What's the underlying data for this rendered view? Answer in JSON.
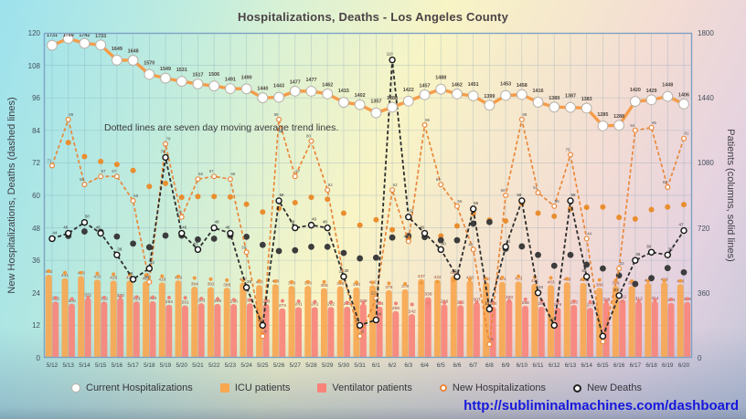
{
  "title": "Hospitalizations, Deaths - Los Angeles County",
  "annotation": "Dotted lines are seven day moving average trend lines.",
  "footer": {
    "url": "http://subliminalmachines.com/dashboard"
  },
  "axes": {
    "left": {
      "label": "New Hospitalizations, Deaths (dashed lines)",
      "ticks": [
        0,
        12,
        24,
        36,
        48,
        60,
        72,
        84,
        96,
        108,
        120
      ],
      "max": 120
    },
    "right": {
      "label": "Patients (columns, solid lines)",
      "ticks": [
        0,
        360,
        720,
        1080,
        1440,
        1800
      ],
      "max": 1800
    }
  },
  "legend": {
    "items": [
      {
        "label": "Current Hospitalizations",
        "marker": "circle-white",
        "color": "#b9b2a8"
      },
      {
        "label": "ICU patients",
        "marker": "square",
        "color": "#F7A750"
      },
      {
        "label": "Ventilator patients",
        "marker": "square",
        "color": "#F8837A"
      },
      {
        "label": "New Hospitalizations",
        "marker": "circle-small",
        "color": "#E8883B"
      },
      {
        "label": "New Deaths",
        "marker": "circle-ring",
        "color": "#222222"
      }
    ]
  },
  "chart_data": {
    "type": "mixed-bar-line",
    "title": "Hospitalizations, Deaths - Los Angeles County",
    "grid": true,
    "x": [
      "5/12",
      "5/13",
      "5/14",
      "5/15",
      "5/16",
      "5/17",
      "5/18",
      "5/19",
      "5/20",
      "5/21",
      "5/22",
      "5/23",
      "5/24",
      "5/25",
      "5/26",
      "5/27",
      "5/28",
      "5/29",
      "5/30",
      "5/31",
      "6/1",
      "6/2",
      "6/3",
      "6/4",
      "6/5",
      "6/6",
      "6/7",
      "6/8",
      "6/9",
      "6/10",
      "6/11",
      "6/12",
      "6/13",
      "6/14",
      "6/15",
      "6/16",
      "6/17",
      "6/18",
      "6/19",
      "6/20"
    ],
    "y_left_range": [
      0,
      120
    ],
    "y_right_range": [
      0,
      1800
    ],
    "trend_note": "Dotted 7-day moving-average trend lines are drawn for ICU patients, Ventilator patients, New Hospitalizations and New Deaths",
    "series": [
      {
        "name": "Current Hospitalizations",
        "type": "line",
        "axis": "right",
        "color": "#F59C4A",
        "marker": "white-circle",
        "values": [
          1731,
          1769,
          1742,
          1733,
          1649,
          1648,
          1570,
          1549,
          1531,
          1517,
          1506,
          1491,
          1490,
          1440,
          1443,
          1477,
          1477,
          1462,
          1415,
          1402,
          1357,
          1388,
          1422,
          1457,
          1488,
          1462,
          1451,
          1399,
          1453,
          1458,
          1416,
          1389,
          1387,
          1383,
          1285,
          1288,
          1420,
          1429,
          1448,
          1406
        ]
      },
      {
        "name": "ICU patients",
        "type": "bar",
        "axis": "right",
        "color": "#F7A750",
        "label_color": "#9c4a30",
        "trend_color": "#F09A3E",
        "values": [
          460,
          441,
          453,
          433,
          428,
          428,
          424,
          418,
          429,
          394,
          392,
          388,
          417,
          403,
          408,
          399,
          399,
          386,
          396,
          390,
          402,
          375,
          379,
          437,
          432,
          455,
          428,
          420,
          421,
          423,
          411,
          403,
          419,
          415,
          388,
          399,
          398,
          414,
          419,
          408
        ]
      },
      {
        "name": "Ventilator patients",
        "type": "bar",
        "axis": "right",
        "color": "#F8837A",
        "label_color": "#8f3d3d",
        "trend_color": "#EE8377",
        "values": [
          312,
          300,
          331,
          312,
          330,
          313,
          314,
          294,
          291,
          303,
          299,
          298,
          302,
          298,
          274,
          281,
          281,
          282,
          283,
          299,
          284,
          259,
          242,
          336,
          296,
          292,
          307,
          284,
          320,
          288,
          283,
          278,
          293,
          277,
          308,
          322,
          312,
          314,
          304,
          309
        ]
      },
      {
        "name": "New Hospitalizations",
        "type": "dashed-line",
        "axis": "left",
        "color": "#E8883B",
        "trend_color": "#E98E2F",
        "values": [
          71,
          88,
          64,
          67,
          67,
          58,
          28,
          79,
          52,
          66,
          67,
          66,
          39,
          8,
          88,
          67,
          80,
          62,
          30,
          8,
          22,
          62,
          43,
          86,
          64,
          56,
          40,
          5,
          60,
          88,
          61,
          56,
          75,
          44,
          6,
          33,
          84,
          85,
          63,
          81
        ]
      },
      {
        "name": "New Deaths",
        "type": "dashed-line",
        "axis": "left",
        "color": "#2E2E2E",
        "trend_color": "#3C3C3C",
        "values": [
          44,
          46,
          50,
          46,
          38,
          29,
          33,
          74,
          46,
          40,
          48,
          46,
          26,
          12,
          58,
          48,
          49,
          48,
          30,
          12,
          14,
          110,
          52,
          46,
          40,
          30,
          55,
          18,
          41,
          58,
          24,
          12,
          58,
          30,
          8,
          23,
          36,
          39,
          38,
          47
        ]
      }
    ]
  }
}
